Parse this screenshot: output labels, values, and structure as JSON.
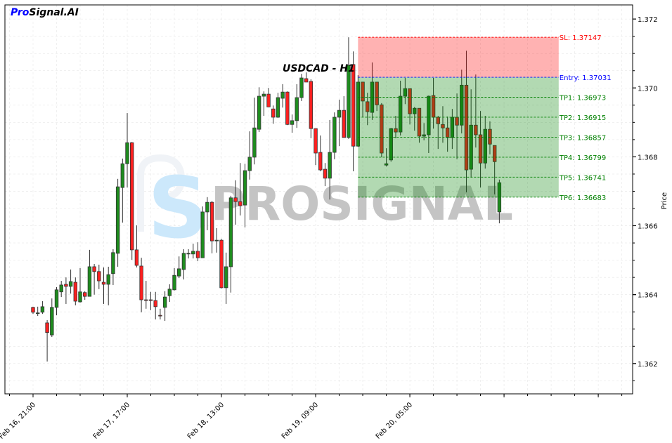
{
  "brand": {
    "part1": "Pro",
    "part2": "Signal.AI"
  },
  "watermark": {
    "text": "PROSIGNAL",
    "logo_letter": "S"
  },
  "colors": {
    "bull": "#1e8c1e",
    "bear": "#ff2020",
    "sl": "#ff0000",
    "entry": "#0000ff",
    "tp": "#008000",
    "sl_zone": "#ffb3b3",
    "tp_zone": "#b3d9b3"
  },
  "chart_data": {
    "type": "candlestick",
    "title": "USDCAD - H1",
    "ylabel": "Price",
    "xlabel": "",
    "timeframe": "H1",
    "first_candle_time": "Feb 16, 21:00",
    "grid": true,
    "ylim": [
      1.36112,
      1.37241
    ],
    "y_ticks": [
      "1.362",
      "1.364",
      "1.366",
      "1.368",
      "1.370",
      "1.372"
    ],
    "x_ticks": [
      "Feb 16, 21:00",
      "Feb 17, 17:00",
      "Feb 18, 13:00",
      "Feb 19, 09:00",
      "Feb 20, 05:00",
      "",
      ""
    ],
    "ohlc": [
      [
        1.36363,
        1.36365,
        1.36344,
        1.36349
      ],
      [
        1.36346,
        1.36365,
        1.36338,
        1.36347
      ],
      [
        1.36349,
        1.36381,
        1.36344,
        1.36365
      ],
      [
        1.36318,
        1.36326,
        1.36206,
        1.3629
      ],
      [
        1.36283,
        1.36389,
        1.36277,
        1.36363
      ],
      [
        1.36363,
        1.36422,
        1.3634,
        1.36414
      ],
      [
        1.36408,
        1.3644,
        1.36393,
        1.36428
      ],
      [
        1.3643,
        1.3645,
        1.36373,
        1.36424
      ],
      [
        1.36424,
        1.36473,
        1.36403,
        1.36438
      ],
      [
        1.36436,
        1.3645,
        1.36369,
        1.36381
      ],
      [
        1.36379,
        1.36477,
        1.36377,
        1.36408
      ],
      [
        1.36406,
        1.3641,
        1.36385,
        1.36395
      ],
      [
        1.36395,
        1.3653,
        1.36395,
        1.36481
      ],
      [
        1.36481,
        1.36489,
        1.364,
        1.36467
      ],
      [
        1.36467,
        1.36487,
        1.36416,
        1.3644
      ],
      [
        1.36436,
        1.36479,
        1.36373,
        1.3643
      ],
      [
        1.3643,
        1.36481,
        1.36369,
        1.36458
      ],
      [
        1.36461,
        1.36532,
        1.36428,
        1.36522
      ],
      [
        1.3652,
        1.36736,
        1.36481,
        1.36713
      ],
      [
        1.36711,
        1.36795,
        1.36609,
        1.3678
      ],
      [
        1.3678,
        1.36927,
        1.36711,
        1.36841
      ],
      [
        1.36841,
        1.36843,
        1.36501,
        1.3653
      ],
      [
        1.3653,
        1.36601,
        1.36479,
        1.36485
      ],
      [
        1.36483,
        1.36507,
        1.36349,
        1.36385
      ],
      [
        1.36385,
        1.3644,
        1.36359,
        1.36384
      ],
      [
        1.36385,
        1.36408,
        1.36355,
        1.36383
      ],
      [
        1.36383,
        1.36408,
        1.36328,
        1.36365
      ],
      [
        1.3634,
        1.36359,
        1.36328,
        1.36339
      ],
      [
        1.36363,
        1.3641,
        1.36324,
        1.36393
      ],
      [
        1.36397,
        1.3643,
        1.36379,
        1.36416
      ],
      [
        1.36414,
        1.36477,
        1.36412,
        1.36456
      ],
      [
        1.36454,
        1.36511,
        1.36448,
        1.36475
      ],
      [
        1.36473,
        1.36532,
        1.36444,
        1.3652
      ],
      [
        1.36518,
        1.36532,
        1.36505,
        1.3652
      ],
      [
        1.36518,
        1.36548,
        1.36505,
        1.36526
      ],
      [
        1.36526,
        1.36552,
        1.36497,
        1.36507
      ],
      [
        1.36507,
        1.36656,
        1.36507,
        1.3664
      ],
      [
        1.3664,
        1.36683,
        1.36587,
        1.36668
      ],
      [
        1.36668,
        1.36672,
        1.3652,
        1.36556
      ],
      [
        1.36556,
        1.36593,
        1.36522,
        1.36558
      ],
      [
        1.36558,
        1.36562,
        1.36418,
        1.3642
      ],
      [
        1.3642,
        1.36522,
        1.36373,
        1.36481
      ],
      [
        1.36481,
        1.36687,
        1.36406,
        1.36681
      ],
      [
        1.36681,
        1.36732,
        1.36603,
        1.3667
      ],
      [
        1.3667,
        1.36782,
        1.3663,
        1.36658
      ],
      [
        1.3666,
        1.3678,
        1.36595,
        1.3676
      ],
      [
        1.3676,
        1.36874,
        1.36734,
        1.36799
      ],
      [
        1.36799,
        1.36972,
        1.36778,
        1.36884
      ],
      [
        1.3688,
        1.37002,
        1.36872,
        1.36976
      ],
      [
        1.36976,
        1.3699,
        1.36919,
        1.36982
      ],
      [
        1.36982,
        1.37,
        1.36945,
        1.36945
      ],
      [
        1.36939,
        1.36949,
        1.36896,
        1.36915
      ],
      [
        1.36915,
        1.36986,
        1.36913,
        1.36972
      ],
      [
        1.3697,
        1.37011,
        1.36943,
        1.36988
      ],
      [
        1.36988,
        1.3699,
        1.36892,
        1.36894
      ],
      [
        1.36894,
        1.36923,
        1.3687,
        1.36905
      ],
      [
        1.36905,
        1.37011,
        1.36884,
        1.36972
      ],
      [
        1.36972,
        1.37041,
        1.36962,
        1.37029
      ],
      [
        1.37027,
        1.37045,
        1.37017,
        1.37017
      ],
      [
        1.37019,
        1.37025,
        1.36854,
        1.36882
      ],
      [
        1.36882,
        1.36882,
        1.36776,
        1.36811
      ],
      [
        1.36813,
        1.36862,
        1.36758,
        1.36762
      ],
      [
        1.36764,
        1.36782,
        1.36715,
        1.36738
      ],
      [
        1.36738,
        1.36907,
        1.36676,
        1.36813
      ],
      [
        1.36813,
        1.36929,
        1.36793,
        1.36915
      ],
      [
        1.36915,
        1.36966,
        1.36831,
        1.36935
      ],
      [
        1.36935,
        1.36976,
        1.36856,
        1.36856
      ],
      [
        1.36856,
        1.37147,
        1.36852,
        1.37066
      ],
      [
        1.37068,
        1.37106,
        1.36758,
        1.36831
      ],
      [
        1.36831,
        1.37037,
        1.36829,
        1.37017
      ],
      [
        1.37017,
        1.37017,
        1.36915,
        1.36962
      ],
      [
        1.3696,
        1.36986,
        1.36892,
        1.36931
      ],
      [
        1.36929,
        1.37074,
        1.36907,
        1.37017
      ],
      [
        1.37017,
        1.37017,
        1.36933,
        1.36951
      ],
      [
        1.36951,
        1.36956,
        1.36799,
        1.36811
      ],
      [
        1.36776,
        1.36825,
        1.36772,
        1.3678
      ],
      [
        1.36791,
        1.36884,
        1.36786,
        1.36882
      ],
      [
        1.36882,
        1.36919,
        1.36854,
        1.36872
      ],
      [
        1.36872,
        1.37021,
        1.36862,
        1.36976
      ],
      [
        1.36976,
        1.37029,
        1.36953,
        1.36998
      ],
      [
        1.36998,
        1.36998,
        1.36894,
        1.36925
      ],
      [
        1.36925,
        1.36945,
        1.36876,
        1.36941
      ],
      [
        1.36941,
        1.36941,
        1.36841,
        1.3686
      ],
      [
        1.3686,
        1.36898,
        1.36848,
        1.36864
      ],
      [
        1.36864,
        1.36978,
        1.36811,
        1.36976
      ],
      [
        1.36978,
        1.37029,
        1.36882,
        1.36915
      ],
      [
        1.36915,
        1.36919,
        1.36823,
        1.36896
      ],
      [
        1.36894,
        1.36947,
        1.36841,
        1.36884
      ],
      [
        1.36884,
        1.36917,
        1.36815,
        1.36856
      ],
      [
        1.36856,
        1.36939,
        1.36823,
        1.36915
      ],
      [
        1.36915,
        1.36984,
        1.36793,
        1.36892
      ],
      [
        1.36892,
        1.37053,
        1.36868,
        1.37008
      ],
      [
        1.37008,
        1.37108,
        1.36697,
        1.36762
      ],
      [
        1.36764,
        1.36996,
        1.3674,
        1.36892
      ],
      [
        1.36892,
        1.37039,
        1.36827,
        1.36864
      ],
      [
        1.36864,
        1.36933,
        1.36711,
        1.36782
      ],
      [
        1.36782,
        1.36919,
        1.36766,
        1.3688
      ],
      [
        1.3688,
        1.36903,
        1.36807,
        1.36837
      ],
      [
        1.36833,
        1.36833,
        1.36691,
        1.36786
      ],
      [
        1.3664,
        1.36734,
        1.36607,
        1.36725
      ]
    ],
    "zone": {
      "start": "Feb 19, 18:00",
      "end": "Feb 21, 13:00"
    },
    "levels": [
      {
        "label": "SL: 1.37147",
        "value": 1.37147,
        "kind": "sl"
      },
      {
        "label": "Entry: 1.37031",
        "value": 1.37031,
        "kind": "entry"
      },
      {
        "label": "TP1: 1.36973",
        "value": 1.36973,
        "kind": "tp"
      },
      {
        "label": "TP2: 1.36915",
        "value": 1.36915,
        "kind": "tp"
      },
      {
        "label": "TP3: 1.36857",
        "value": 1.36857,
        "kind": "tp"
      },
      {
        "label": "TP4: 1.36799",
        "value": 1.36799,
        "kind": "tp"
      },
      {
        "label": "TP5: 1.36741",
        "value": 1.36741,
        "kind": "tp"
      },
      {
        "label": "TP6: 1.36683",
        "value": 1.36683,
        "kind": "tp"
      }
    ]
  }
}
